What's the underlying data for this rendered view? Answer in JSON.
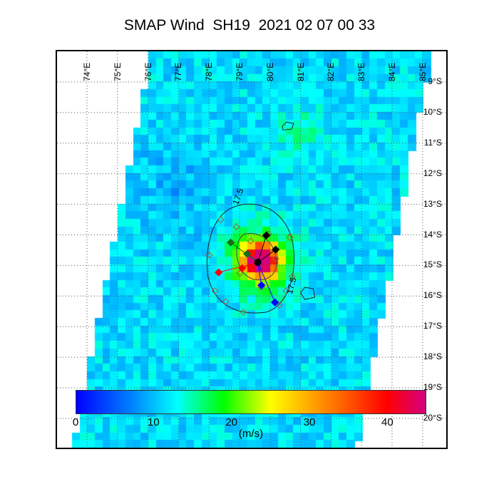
{
  "title": "SMAP Wind  SH19  2021 02 07 00 33",
  "map": {
    "lon_labels": [
      "74°E",
      "75°E",
      "76°E",
      "77°E",
      "78°E",
      "79°E",
      "80°E",
      "81°E",
      "82°E",
      "83°E",
      "84°E",
      "85°E"
    ],
    "lat_labels": [
      "9°S",
      "10°S",
      "11°S",
      "12°S",
      "13°S",
      "14°S",
      "15°S",
      "16°S",
      "17°S",
      "18°S",
      "19°S",
      "20°S"
    ],
    "lon_range": [
      73,
      85.5
    ],
    "lat_range": [
      8,
      21
    ],
    "storm_center": {
      "lon": 79.6,
      "lat": 14.9
    },
    "contour_labels": [
      "17.5",
      "17.5"
    ]
  },
  "colorbar": {
    "range": [
      0,
      45
    ],
    "ticks": [
      0,
      10,
      20,
      30,
      40
    ],
    "tick_labels": [
      "0",
      "10",
      "20",
      "30",
      "40"
    ],
    "unit": "(m/s)",
    "stops": [
      {
        "v": 0,
        "c": "#0000ff"
      },
      {
        "v": 7,
        "c": "#0080ff"
      },
      {
        "v": 13,
        "c": "#00ffff"
      },
      {
        "v": 19,
        "c": "#00ff00"
      },
      {
        "v": 25,
        "c": "#ffff00"
      },
      {
        "v": 31,
        "c": "#ff9900"
      },
      {
        "v": 40,
        "c": "#ff0000"
      },
      {
        "v": 45,
        "c": "#d4007f"
      }
    ]
  }
}
